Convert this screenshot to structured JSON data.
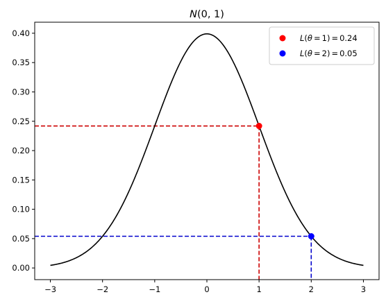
{
  "chart_data": {
    "type": "line",
    "title": "N(0, 1)",
    "title_parts": {
      "n": "N",
      "args": "(0, 1)"
    },
    "xlabel": "",
    "ylabel": "",
    "xlim": [
      -3.3,
      3.3
    ],
    "ylim": [
      -0.0199,
      0.4188
    ],
    "grid": false,
    "legend_position": "top-right",
    "x_ticks": [
      -3,
      -2,
      -1,
      0,
      1,
      2,
      3
    ],
    "x_tick_labels": [
      "−3",
      "−2",
      "−1",
      "0",
      "1",
      "2",
      "3"
    ],
    "y_ticks": [
      0.0,
      0.05,
      0.1,
      0.15,
      0.2,
      0.25,
      0.3,
      0.35,
      0.4
    ],
    "y_tick_labels": [
      "0.00",
      "0.05",
      "0.10",
      "0.15",
      "0.20",
      "0.25",
      "0.30",
      "0.35",
      "0.40"
    ],
    "curve": {
      "color": "#000000",
      "x": [
        -3.0,
        -2.75,
        -2.5,
        -2.25,
        -2.0,
        -1.75,
        -1.5,
        -1.25,
        -1.0,
        -0.75,
        -0.5,
        -0.25,
        0.0,
        0.25,
        0.5,
        0.75,
        1.0,
        1.25,
        1.5,
        1.75,
        2.0,
        2.25,
        2.5,
        2.75,
        3.0
      ],
      "y": [
        0.0044,
        0.0091,
        0.0175,
        0.0317,
        0.054,
        0.0863,
        0.1295,
        0.1826,
        0.242,
        0.3011,
        0.3521,
        0.3867,
        0.3989,
        0.3867,
        0.3521,
        0.3011,
        0.242,
        0.1826,
        0.1295,
        0.0863,
        0.054,
        0.0317,
        0.0175,
        0.0091,
        0.0044
      ]
    },
    "points": [
      {
        "x": 1,
        "y": 0.242,
        "color": "#ff0000",
        "guide_color": "#cc0000",
        "legend": {
          "func": "L",
          "paren_open": "(",
          "param": "θ",
          "eq": "=",
          "arg": "1",
          "paren_close": ")",
          "eq2": "=",
          "value": "0.24"
        }
      },
      {
        "x": 2,
        "y": 0.054,
        "color": "#0000ff",
        "guide_color": "#0000cc",
        "legend": {
          "func": "L",
          "paren_open": "(",
          "param": "θ",
          "eq": "=",
          "arg": "2",
          "paren_close": ")",
          "eq2": "=",
          "value": "0.05"
        }
      }
    ]
  }
}
